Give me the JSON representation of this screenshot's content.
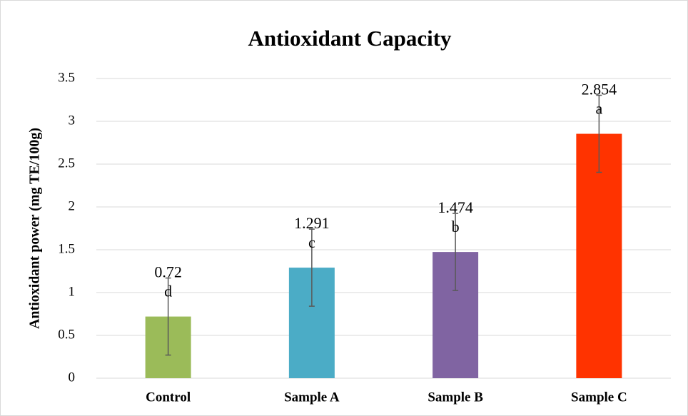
{
  "chart_data": {
    "type": "bar",
    "title": "Antioxidant Capacity",
    "y_label": "Antioxidant power (mg TE/100g)",
    "categories": [
      "Control",
      "Sample A",
      "Sample B",
      "Sample C"
    ],
    "values": [
      0.72,
      1.291,
      1.474,
      2.854
    ],
    "errors": [
      0.45,
      0.45,
      0.45,
      0.45
    ],
    "annotations": [
      "d",
      "c",
      "b",
      "a"
    ],
    "colors": [
      "#9bbb59",
      "#4bacc6",
      "#8064a2",
      "#ff3300"
    ],
    "ylim": [
      0,
      3.5
    ],
    "yticks": [
      0,
      0.5,
      1,
      1.5,
      2,
      2.5,
      3,
      3.5
    ],
    "grid": true
  }
}
